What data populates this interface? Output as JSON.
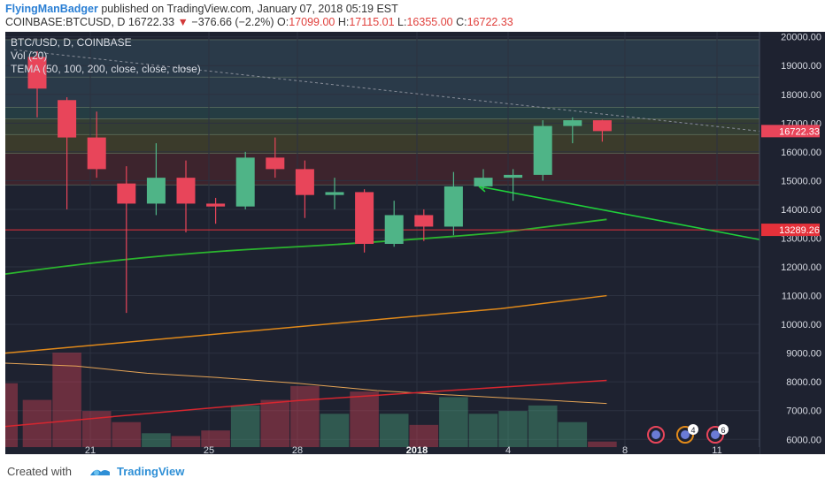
{
  "header": {
    "author": "FlyingManBadger",
    "published": " published on TradingView.com, January 07, 2018 05:19 EST",
    "symbol": "COINBASE:BTCUSD, D",
    "last": "16722.33",
    "arrow": "▼",
    "change": "−376.66 (−2.2%)",
    "o_label": "O:",
    "o_value": "17099.00",
    "h_label": "H:",
    "h_value": "17115.01",
    "l_label": "L:",
    "l_value": "16355.00",
    "c_label": "C:",
    "c_value": "16722.33"
  },
  "legend": {
    "line1": "BTC/USD, D, COINBASE",
    "line2": "Vol (20)",
    "line3": "TEMA (50, 100, 200, close, close, close)"
  },
  "footer": {
    "created_with": "Created with",
    "brand": "TradingView"
  },
  "price_marks": {
    "last_price": "16722.33",
    "red_line_price": "13289.26"
  },
  "axis_badges": [
    "4",
    "6"
  ],
  "colors": {
    "up": "#4fb487",
    "down": "#e8455a",
    "background": "#1e2230",
    "tema_green": "#2bb52e",
    "tema_orange": "#e0891a",
    "vol_ma_red": "#d7262f",
    "vol_ma_orange": "#e5a456",
    "trendline_green": "#1fcf3a"
  },
  "chart_data": {
    "type": "candlestick",
    "x_ticks": [
      "21",
      "25",
      "28",
      "2018",
      "4",
      "8",
      "11"
    ],
    "y_ticks": [
      "6000.00",
      "7000.00",
      "8000.00",
      "9000.00",
      "10000.00",
      "11000.00",
      "12000.00",
      "13000.00",
      "14000.00",
      "15000.00",
      "16000.00",
      "17000.00",
      "18000.00",
      "19000.00",
      "20000.00"
    ],
    "ylim": [
      5700,
      20200
    ],
    "candles": [
      {
        "o": 19300,
        "h": 19500,
        "l": 17200,
        "c": 18200
      },
      {
        "o": 17800,
        "h": 17900,
        "l": 14000,
        "c": 16500
      },
      {
        "o": 16500,
        "h": 17400,
        "l": 15100,
        "c": 15400
      },
      {
        "o": 14900,
        "h": 15500,
        "l": 10400,
        "c": 14200
      },
      {
        "o": 14200,
        "h": 16300,
        "l": 13800,
        "c": 15100
      },
      {
        "o": 15100,
        "h": 15700,
        "l": 13200,
        "c": 14200
      },
      {
        "o": 14200,
        "h": 14400,
        "l": 13500,
        "c": 14100
      },
      {
        "o": 14100,
        "h": 16000,
        "l": 14000,
        "c": 15800
      },
      {
        "o": 15800,
        "h": 16500,
        "l": 15100,
        "c": 15400
      },
      {
        "o": 15400,
        "h": 15700,
        "l": 13700,
        "c": 14500
      },
      {
        "o": 14500,
        "h": 15100,
        "l": 14000,
        "c": 14600
      },
      {
        "o": 14600,
        "h": 14700,
        "l": 12500,
        "c": 12800
      },
      {
        "o": 12800,
        "h": 14300,
        "l": 12700,
        "c": 13800
      },
      {
        "o": 13800,
        "h": 14000,
        "l": 12900,
        "c": 13400
      },
      {
        "o": 13400,
        "h": 15300,
        "l": 13100,
        "c": 14800
      },
      {
        "o": 14800,
        "h": 15400,
        "l": 14700,
        "c": 15100
      },
      {
        "o": 15100,
        "h": 15400,
        "l": 14300,
        "c": 15200
      },
      {
        "o": 15200,
        "h": 17100,
        "l": 15000,
        "c": 16900
      },
      {
        "o": 16900,
        "h": 17200,
        "l": 16300,
        "c": 17100
      },
      {
        "o": 17099,
        "h": 17115,
        "l": 16355,
        "c": 16722
      }
    ],
    "volume": [
      7600,
      9300,
      7200,
      6800,
      6400,
      6300,
      6500,
      7400,
      7600,
      8100,
      7100,
      7900,
      7100,
      6700,
      7700,
      7100,
      7200,
      7400,
      6800,
      6100
    ],
    "volume_prev": [
      8200
    ],
    "tema_50_last": 13650,
    "tema_100_last": 11000,
    "red_line": 13289.26,
    "last_price": 16722.33
  }
}
